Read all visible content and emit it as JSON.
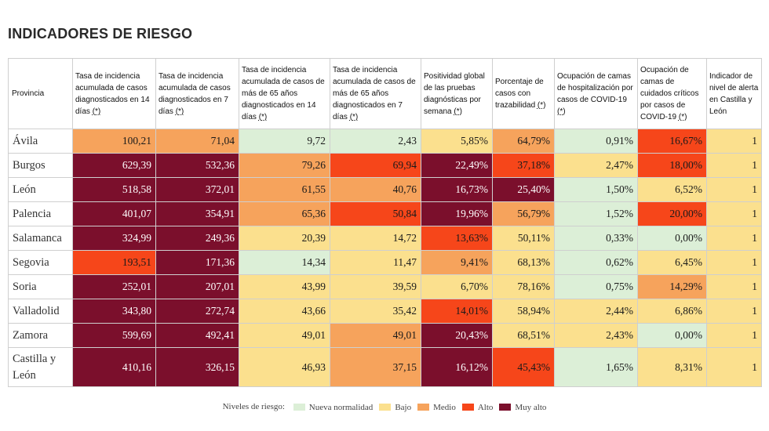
{
  "title": "INDICADORES DE RIESGO",
  "colors": {
    "nueva": "#dcefd7",
    "bajo": "#fbe08e",
    "medio": "#f6a35c",
    "alto": "#f6461a",
    "muy_alto": "#7b0f2c"
  },
  "headers": [
    {
      "text": "Provincia",
      "asterisk": ""
    },
    {
      "text": "Tasa de incidencia acumulada de casos diagnosticados en 14 días ",
      "asterisk": "(*)"
    },
    {
      "text": "Tasa de incidencia acumulada de casos diagnosticados en 7 días ",
      "asterisk": "(*)"
    },
    {
      "text": "Tasa de incidencia acumulada de casos de más de 65 años diagnosticados en 14 días ",
      "asterisk": "(*)"
    },
    {
      "text": "Tasa de incidencia acumulada de casos de más de 65 años diagnosticados en 7 días ",
      "asterisk": "(*)"
    },
    {
      "text": "Positividad global de las pruebas diagnósticas por semana ",
      "asterisk": "(*)"
    },
    {
      "text": "Porcentaje de casos con trazabilidad ",
      "asterisk": "(*)"
    },
    {
      "text": "Ocupación de camas de hospitalización por casos de COVID-19 ",
      "asterisk": "(*)"
    },
    {
      "text": "Ocupación de camas de cuidados críticos por casos de COVID-19 ",
      "asterisk": "(*)"
    },
    {
      "text": "Indicador de nivel de alerta en Castilla y León",
      "asterisk": ""
    }
  ],
  "rows": [
    {
      "provincia": "Ávila",
      "cells": [
        {
          "v": "100,21",
          "l": "medio"
        },
        {
          "v": "71,04",
          "l": "medio"
        },
        {
          "v": "9,72",
          "l": "nueva"
        },
        {
          "v": "2,43",
          "l": "nueva"
        },
        {
          "v": "5,85%",
          "l": "bajo"
        },
        {
          "v": "64,79%",
          "l": "medio"
        },
        {
          "v": "0,91%",
          "l": "nueva"
        },
        {
          "v": "16,67%",
          "l": "alto"
        },
        {
          "v": "1",
          "l": "bajo"
        }
      ]
    },
    {
      "provincia": "Burgos",
      "cells": [
        {
          "v": "629,39",
          "l": "muy_alto"
        },
        {
          "v": "532,36",
          "l": "muy_alto"
        },
        {
          "v": "79,26",
          "l": "medio"
        },
        {
          "v": "69,94",
          "l": "alto"
        },
        {
          "v": "22,49%",
          "l": "muy_alto"
        },
        {
          "v": "37,18%",
          "l": "alto"
        },
        {
          "v": "2,47%",
          "l": "bajo"
        },
        {
          "v": "18,00%",
          "l": "alto"
        },
        {
          "v": "1",
          "l": "bajo"
        }
      ]
    },
    {
      "provincia": "León",
      "cells": [
        {
          "v": "518,58",
          "l": "muy_alto"
        },
        {
          "v": "372,01",
          "l": "muy_alto"
        },
        {
          "v": "61,55",
          "l": "medio"
        },
        {
          "v": "40,76",
          "l": "medio"
        },
        {
          "v": "16,73%",
          "l": "muy_alto"
        },
        {
          "v": "25,40%",
          "l": "muy_alto"
        },
        {
          "v": "1,50%",
          "l": "nueva"
        },
        {
          "v": "6,52%",
          "l": "bajo"
        },
        {
          "v": "1",
          "l": "bajo"
        }
      ]
    },
    {
      "provincia": "Palencia",
      "cells": [
        {
          "v": "401,07",
          "l": "muy_alto"
        },
        {
          "v": "354,91",
          "l": "muy_alto"
        },
        {
          "v": "65,36",
          "l": "medio"
        },
        {
          "v": "50,84",
          "l": "alto"
        },
        {
          "v": "19,96%",
          "l": "muy_alto"
        },
        {
          "v": "56,79%",
          "l": "medio"
        },
        {
          "v": "1,52%",
          "l": "nueva"
        },
        {
          "v": "20,00%",
          "l": "alto"
        },
        {
          "v": "1",
          "l": "bajo"
        }
      ]
    },
    {
      "provincia": "Salamanca",
      "cells": [
        {
          "v": "324,99",
          "l": "muy_alto"
        },
        {
          "v": "249,36",
          "l": "muy_alto"
        },
        {
          "v": "20,39",
          "l": "bajo"
        },
        {
          "v": "14,72",
          "l": "bajo"
        },
        {
          "v": "13,63%",
          "l": "alto"
        },
        {
          "v": "50,11%",
          "l": "bajo"
        },
        {
          "v": "0,33%",
          "l": "nueva"
        },
        {
          "v": "0,00%",
          "l": "nueva"
        },
        {
          "v": "1",
          "l": "bajo"
        }
      ]
    },
    {
      "provincia": "Segovia",
      "cells": [
        {
          "v": "193,51",
          "l": "alto"
        },
        {
          "v": "171,36",
          "l": "muy_alto"
        },
        {
          "v": "14,34",
          "l": "nueva"
        },
        {
          "v": "11,47",
          "l": "bajo"
        },
        {
          "v": "9,41%",
          "l": "medio"
        },
        {
          "v": "68,13%",
          "l": "bajo"
        },
        {
          "v": "0,62%",
          "l": "nueva"
        },
        {
          "v": "6,45%",
          "l": "bajo"
        },
        {
          "v": "1",
          "l": "bajo"
        }
      ]
    },
    {
      "provincia": "Soria",
      "cells": [
        {
          "v": "252,01",
          "l": "muy_alto"
        },
        {
          "v": "207,01",
          "l": "muy_alto"
        },
        {
          "v": "43,99",
          "l": "bajo"
        },
        {
          "v": "39,59",
          "l": "bajo"
        },
        {
          "v": "6,70%",
          "l": "bajo"
        },
        {
          "v": "78,16%",
          "l": "bajo"
        },
        {
          "v": "0,75%",
          "l": "nueva"
        },
        {
          "v": "14,29%",
          "l": "medio"
        },
        {
          "v": "1",
          "l": "bajo"
        }
      ]
    },
    {
      "provincia": "Valladolid",
      "cells": [
        {
          "v": "343,80",
          "l": "muy_alto"
        },
        {
          "v": "272,74",
          "l": "muy_alto"
        },
        {
          "v": "43,66",
          "l": "bajo"
        },
        {
          "v": "35,42",
          "l": "bajo"
        },
        {
          "v": "14,01%",
          "l": "alto"
        },
        {
          "v": "58,94%",
          "l": "bajo"
        },
        {
          "v": "2,44%",
          "l": "bajo"
        },
        {
          "v": "6,86%",
          "l": "bajo"
        },
        {
          "v": "1",
          "l": "bajo"
        }
      ]
    },
    {
      "provincia": "Zamora",
      "cells": [
        {
          "v": "599,69",
          "l": "muy_alto"
        },
        {
          "v": "492,41",
          "l": "muy_alto"
        },
        {
          "v": "49,01",
          "l": "bajo"
        },
        {
          "v": "49,01",
          "l": "medio"
        },
        {
          "v": "20,43%",
          "l": "muy_alto"
        },
        {
          "v": "68,51%",
          "l": "bajo"
        },
        {
          "v": "2,43%",
          "l": "bajo"
        },
        {
          "v": "0,00%",
          "l": "nueva"
        },
        {
          "v": "1",
          "l": "bajo"
        }
      ]
    },
    {
      "provincia": "Castilla y León",
      "cells": [
        {
          "v": "410,16",
          "l": "muy_alto"
        },
        {
          "v": "326,15",
          "l": "muy_alto"
        },
        {
          "v": "46,93",
          "l": "bajo"
        },
        {
          "v": "37,15",
          "l": "medio"
        },
        {
          "v": "16,12%",
          "l": "muy_alto"
        },
        {
          "v": "45,43%",
          "l": "alto"
        },
        {
          "v": "1,65%",
          "l": "nueva"
        },
        {
          "v": "8,31%",
          "l": "bajo"
        },
        {
          "v": "1",
          "l": "bajo"
        }
      ]
    }
  ],
  "legend": {
    "label": "Niveles de riesgo:",
    "items": [
      {
        "key": "nueva",
        "label": "Nueva normalidad"
      },
      {
        "key": "bajo",
        "label": "Bajo"
      },
      {
        "key": "medio",
        "label": "Medio"
      },
      {
        "key": "alto",
        "label": "Alto"
      },
      {
        "key": "muy_alto",
        "label": "Muy alto"
      }
    ]
  }
}
